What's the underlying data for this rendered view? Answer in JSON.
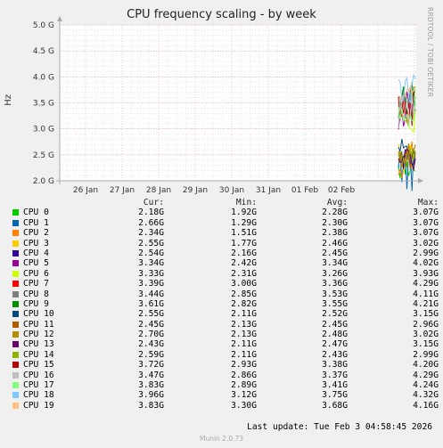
{
  "chart_data": {
    "type": "line",
    "title": "CPU frequency scaling - by week",
    "ylabel": "Hz",
    "ylim": [
      2.0,
      5.0
    ],
    "yticks": [
      "2.0 G",
      "2.5 G",
      "3.0 G",
      "3.5 G",
      "4.0 G",
      "4.5 G",
      "5.0 G"
    ],
    "ytick_values": [
      2.0,
      2.5,
      3.0,
      3.5,
      4.0,
      4.5,
      5.0
    ],
    "xticks": [
      "26 Jan",
      "27 Jan",
      "28 Jan",
      "29 Jan",
      "30 Jan",
      "31 Jan",
      "01 Feb",
      "02 Feb"
    ],
    "grid": true,
    "legend_columns": [
      "Cur:",
      "Min:",
      "Avg:",
      "Max:"
    ],
    "series": [
      {
        "name": "CPU 0",
        "color": "#00cc00",
        "cur": "2.18G",
        "min": "1.92G",
        "avg": "2.28G",
        "max": "3.07G"
      },
      {
        "name": "CPU 1",
        "color": "#0066b3",
        "cur": "2.66G",
        "min": "1.29G",
        "avg": "2.30G",
        "max": "3.07G"
      },
      {
        "name": "CPU 2",
        "color": "#ff8000",
        "cur": "2.34G",
        "min": "1.51G",
        "avg": "2.38G",
        "max": "3.07G"
      },
      {
        "name": "CPU 3",
        "color": "#ffcc00",
        "cur": "2.55G",
        "min": "1.77G",
        "avg": "2.46G",
        "max": "3.02G"
      },
      {
        "name": "CPU 4",
        "color": "#330099",
        "cur": "2.54G",
        "min": "2.16G",
        "avg": "2.45G",
        "max": "2.99G"
      },
      {
        "name": "CPU 5",
        "color": "#990099",
        "cur": "3.34G",
        "min": "2.42G",
        "avg": "3.34G",
        "max": "4.02G"
      },
      {
        "name": "CPU 6",
        "color": "#ccff00",
        "cur": "3.33G",
        "min": "2.31G",
        "avg": "3.26G",
        "max": "3.93G"
      },
      {
        "name": "CPU 7",
        "color": "#ff0000",
        "cur": "3.39G",
        "min": "3.00G",
        "avg": "3.36G",
        "max": "4.29G"
      },
      {
        "name": "CPU 8",
        "color": "#808080",
        "cur": "3.44G",
        "min": "2.85G",
        "avg": "3.53G",
        "max": "4.11G"
      },
      {
        "name": "CPU 9",
        "color": "#008f00",
        "cur": "3.61G",
        "min": "2.82G",
        "avg": "3.55G",
        "max": "4.21G"
      },
      {
        "name": "CPU 10",
        "color": "#00487d",
        "cur": "2.55G",
        "min": "2.11G",
        "avg": "2.52G",
        "max": "3.15G"
      },
      {
        "name": "CPU 11",
        "color": "#b35a00",
        "cur": "2.45G",
        "min": "2.13G",
        "avg": "2.45G",
        "max": "2.96G"
      },
      {
        "name": "CPU 12",
        "color": "#b38f00",
        "cur": "2.70G",
        "min": "2.13G",
        "avg": "2.48G",
        "max": "3.02G"
      },
      {
        "name": "CPU 13",
        "color": "#6b006b",
        "cur": "2.43G",
        "min": "2.11G",
        "avg": "2.47G",
        "max": "3.15G"
      },
      {
        "name": "CPU 14",
        "color": "#8fb300",
        "cur": "2.59G",
        "min": "2.11G",
        "avg": "2.43G",
        "max": "2.99G"
      },
      {
        "name": "CPU 15",
        "color": "#b30000",
        "cur": "3.72G",
        "min": "2.93G",
        "avg": "3.38G",
        "max": "4.20G"
      },
      {
        "name": "CPU 16",
        "color": "#bebebe",
        "cur": "3.47G",
        "min": "2.86G",
        "avg": "3.37G",
        "max": "4.29G"
      },
      {
        "name": "CPU 17",
        "color": "#80ff80",
        "cur": "3.83G",
        "min": "2.89G",
        "avg": "3.41G",
        "max": "4.24G"
      },
      {
        "name": "CPU 18",
        "color": "#80c9ff",
        "cur": "3.96G",
        "min": "3.12G",
        "avg": "3.75G",
        "max": "4.32G"
      },
      {
        "name": "CPU 19",
        "color": "#ffc080",
        "cur": "3.83G",
        "min": "3.30G",
        "avg": "3.68G",
        "max": "4.16G"
      }
    ]
  },
  "side_label": "RRDTOOL / TOBI OETIKER",
  "last_update": "Last update: Tue Feb  3 04:58:45 2026",
  "footer": "Munin 2.0.73"
}
